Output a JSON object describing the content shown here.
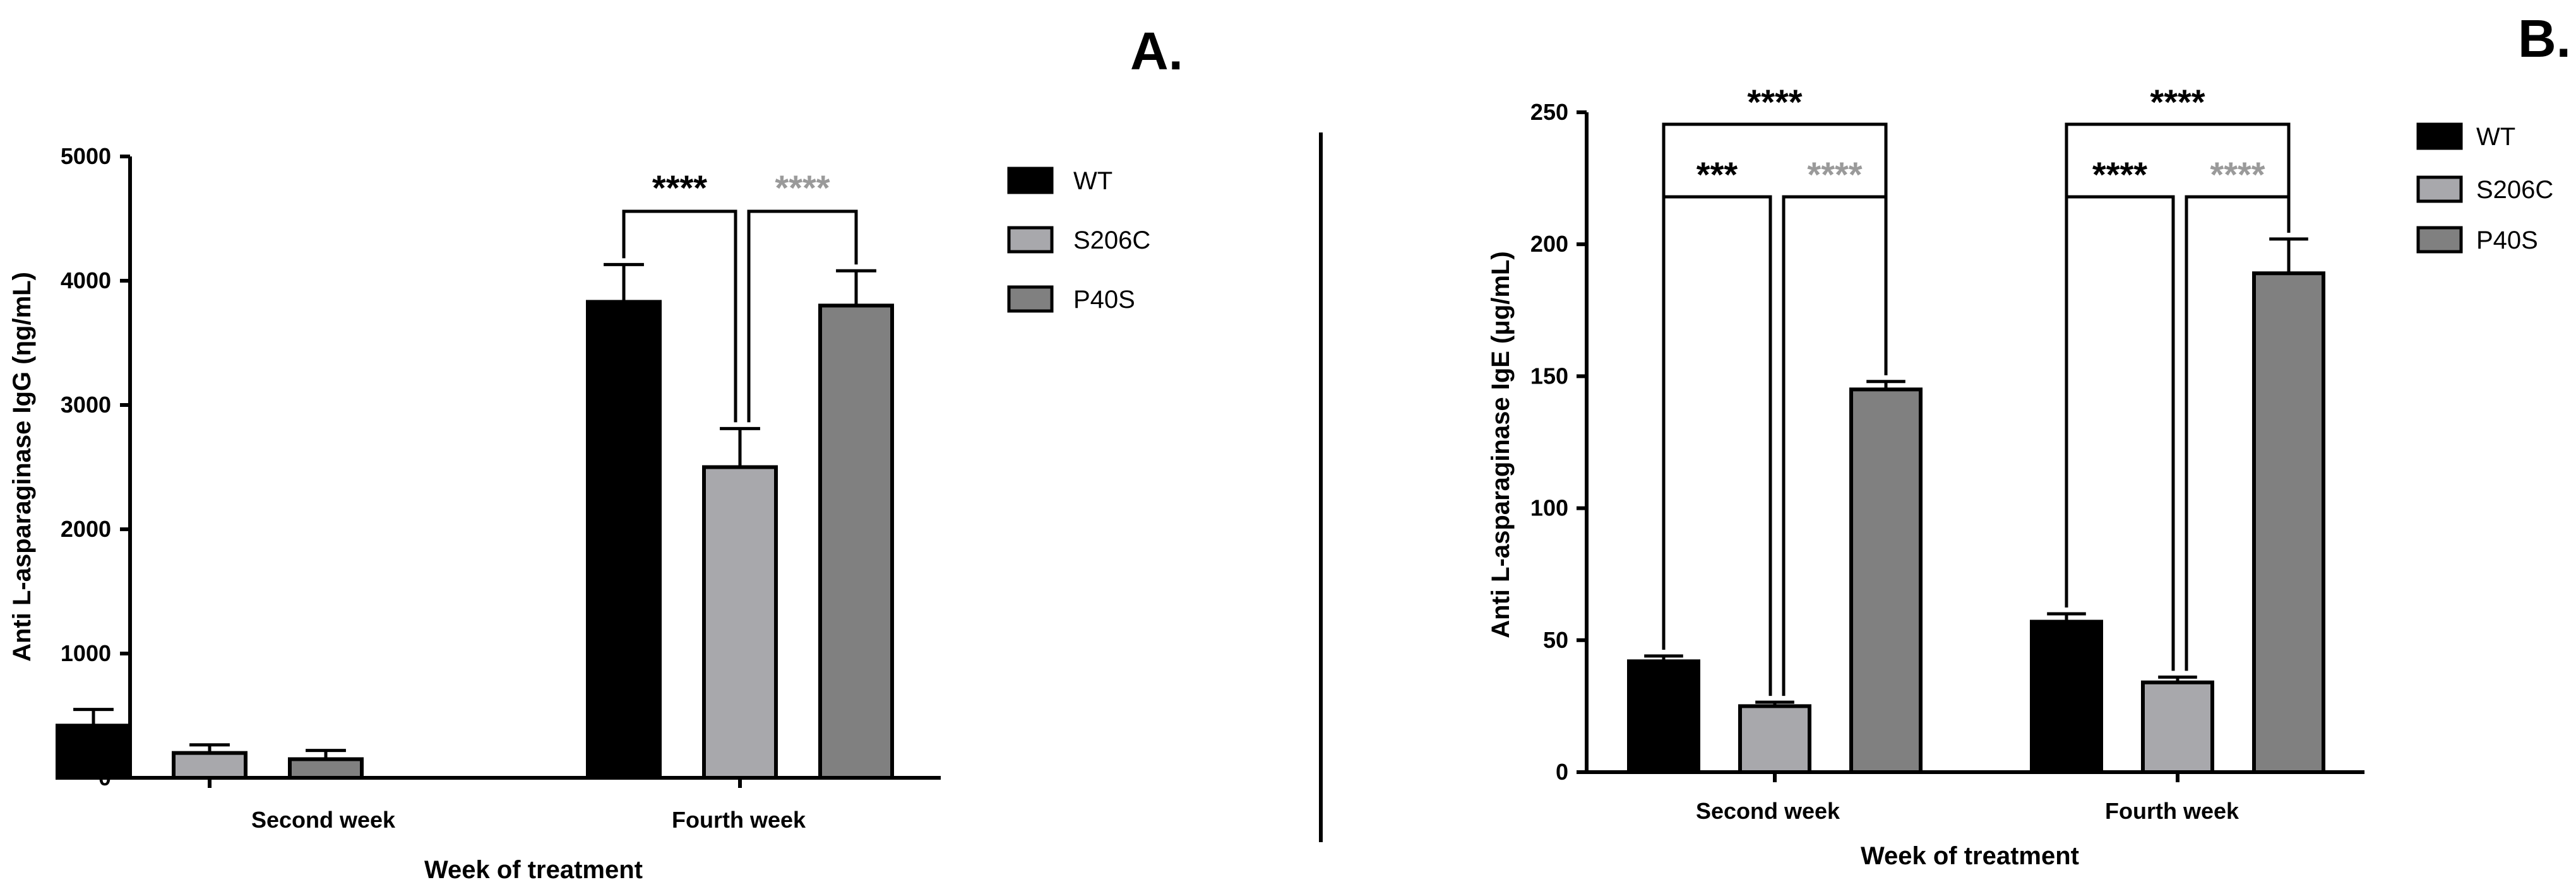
{
  "chart_data": [
    {
      "type": "bar",
      "panel_label": "A.",
      "categories": [
        "Second week",
        "Fourth week"
      ],
      "xlabel": "Week of treatment",
      "ylabel": "Anti L-asparaginase IgG (ηg/mL)",
      "ylim": [
        0,
        5000
      ],
      "yticks": [
        0,
        1000,
        2000,
        3000,
        4000,
        5000
      ],
      "series": [
        {
          "name": "WT",
          "color": "#000000",
          "values": [
            420,
            3830
          ],
          "errors": [
            130,
            300
          ]
        },
        {
          "name": "S206C",
          "color": "#a8a8ac",
          "values": [
            200,
            2500
          ],
          "errors": [
            65,
            310
          ]
        },
        {
          "name": "P40S",
          "color": "#808080",
          "values": [
            150,
            3800
          ],
          "errors": [
            70,
            280
          ]
        }
      ],
      "annotations": [
        {
          "text": "****",
          "color": "#000000",
          "category": "Fourth week",
          "from": "WT",
          "to": "S206C",
          "level": 0
        },
        {
          "text": "****",
          "color": "#9a9a9a",
          "category": "Fourth week",
          "from": "S206C",
          "to": "P40S",
          "level": 0
        }
      ],
      "legend": "right"
    },
    {
      "type": "bar",
      "panel_label": "B.",
      "categories": [
        "Second week",
        "Fourth week"
      ],
      "xlabel": "Week of treatment",
      "ylabel": "Anti L-asparaginase IgE (μg/mL)",
      "ylim": [
        0,
        250
      ],
      "yticks": [
        0,
        50,
        100,
        150,
        200,
        250
      ],
      "series": [
        {
          "name": "WT",
          "color": "#000000",
          "values": [
            42,
            57
          ],
          "errors": [
            2,
            3
          ]
        },
        {
          "name": "S206C",
          "color": "#a8a8ac",
          "values": [
            25,
            34
          ],
          "errors": [
            1.5,
            2
          ]
        },
        {
          "name": "P40S",
          "color": "#808080",
          "values": [
            145,
            189
          ],
          "errors": [
            3,
            13
          ]
        }
      ],
      "annotations": [
        {
          "text": "****",
          "color": "#000000",
          "category": "Second week",
          "from": "WT",
          "to": "P40S",
          "level": 1
        },
        {
          "text": "***",
          "color": "#000000",
          "category": "Second week",
          "from": "WT",
          "to": "S206C",
          "level": 0
        },
        {
          "text": "****",
          "color": "#9a9a9a",
          "category": "Second week",
          "from": "S206C",
          "to": "P40S",
          "level": 0
        },
        {
          "text": "****",
          "color": "#000000",
          "category": "Fourth week",
          "from": "WT",
          "to": "P40S",
          "level": 1
        },
        {
          "text": "****",
          "color": "#000000",
          "category": "Fourth week",
          "from": "WT",
          "to": "S206C",
          "level": 0
        },
        {
          "text": "****",
          "color": "#9a9a9a",
          "category": "Fourth week",
          "from": "S206C",
          "to": "P40S",
          "level": 0
        }
      ],
      "legend": "right"
    }
  ]
}
